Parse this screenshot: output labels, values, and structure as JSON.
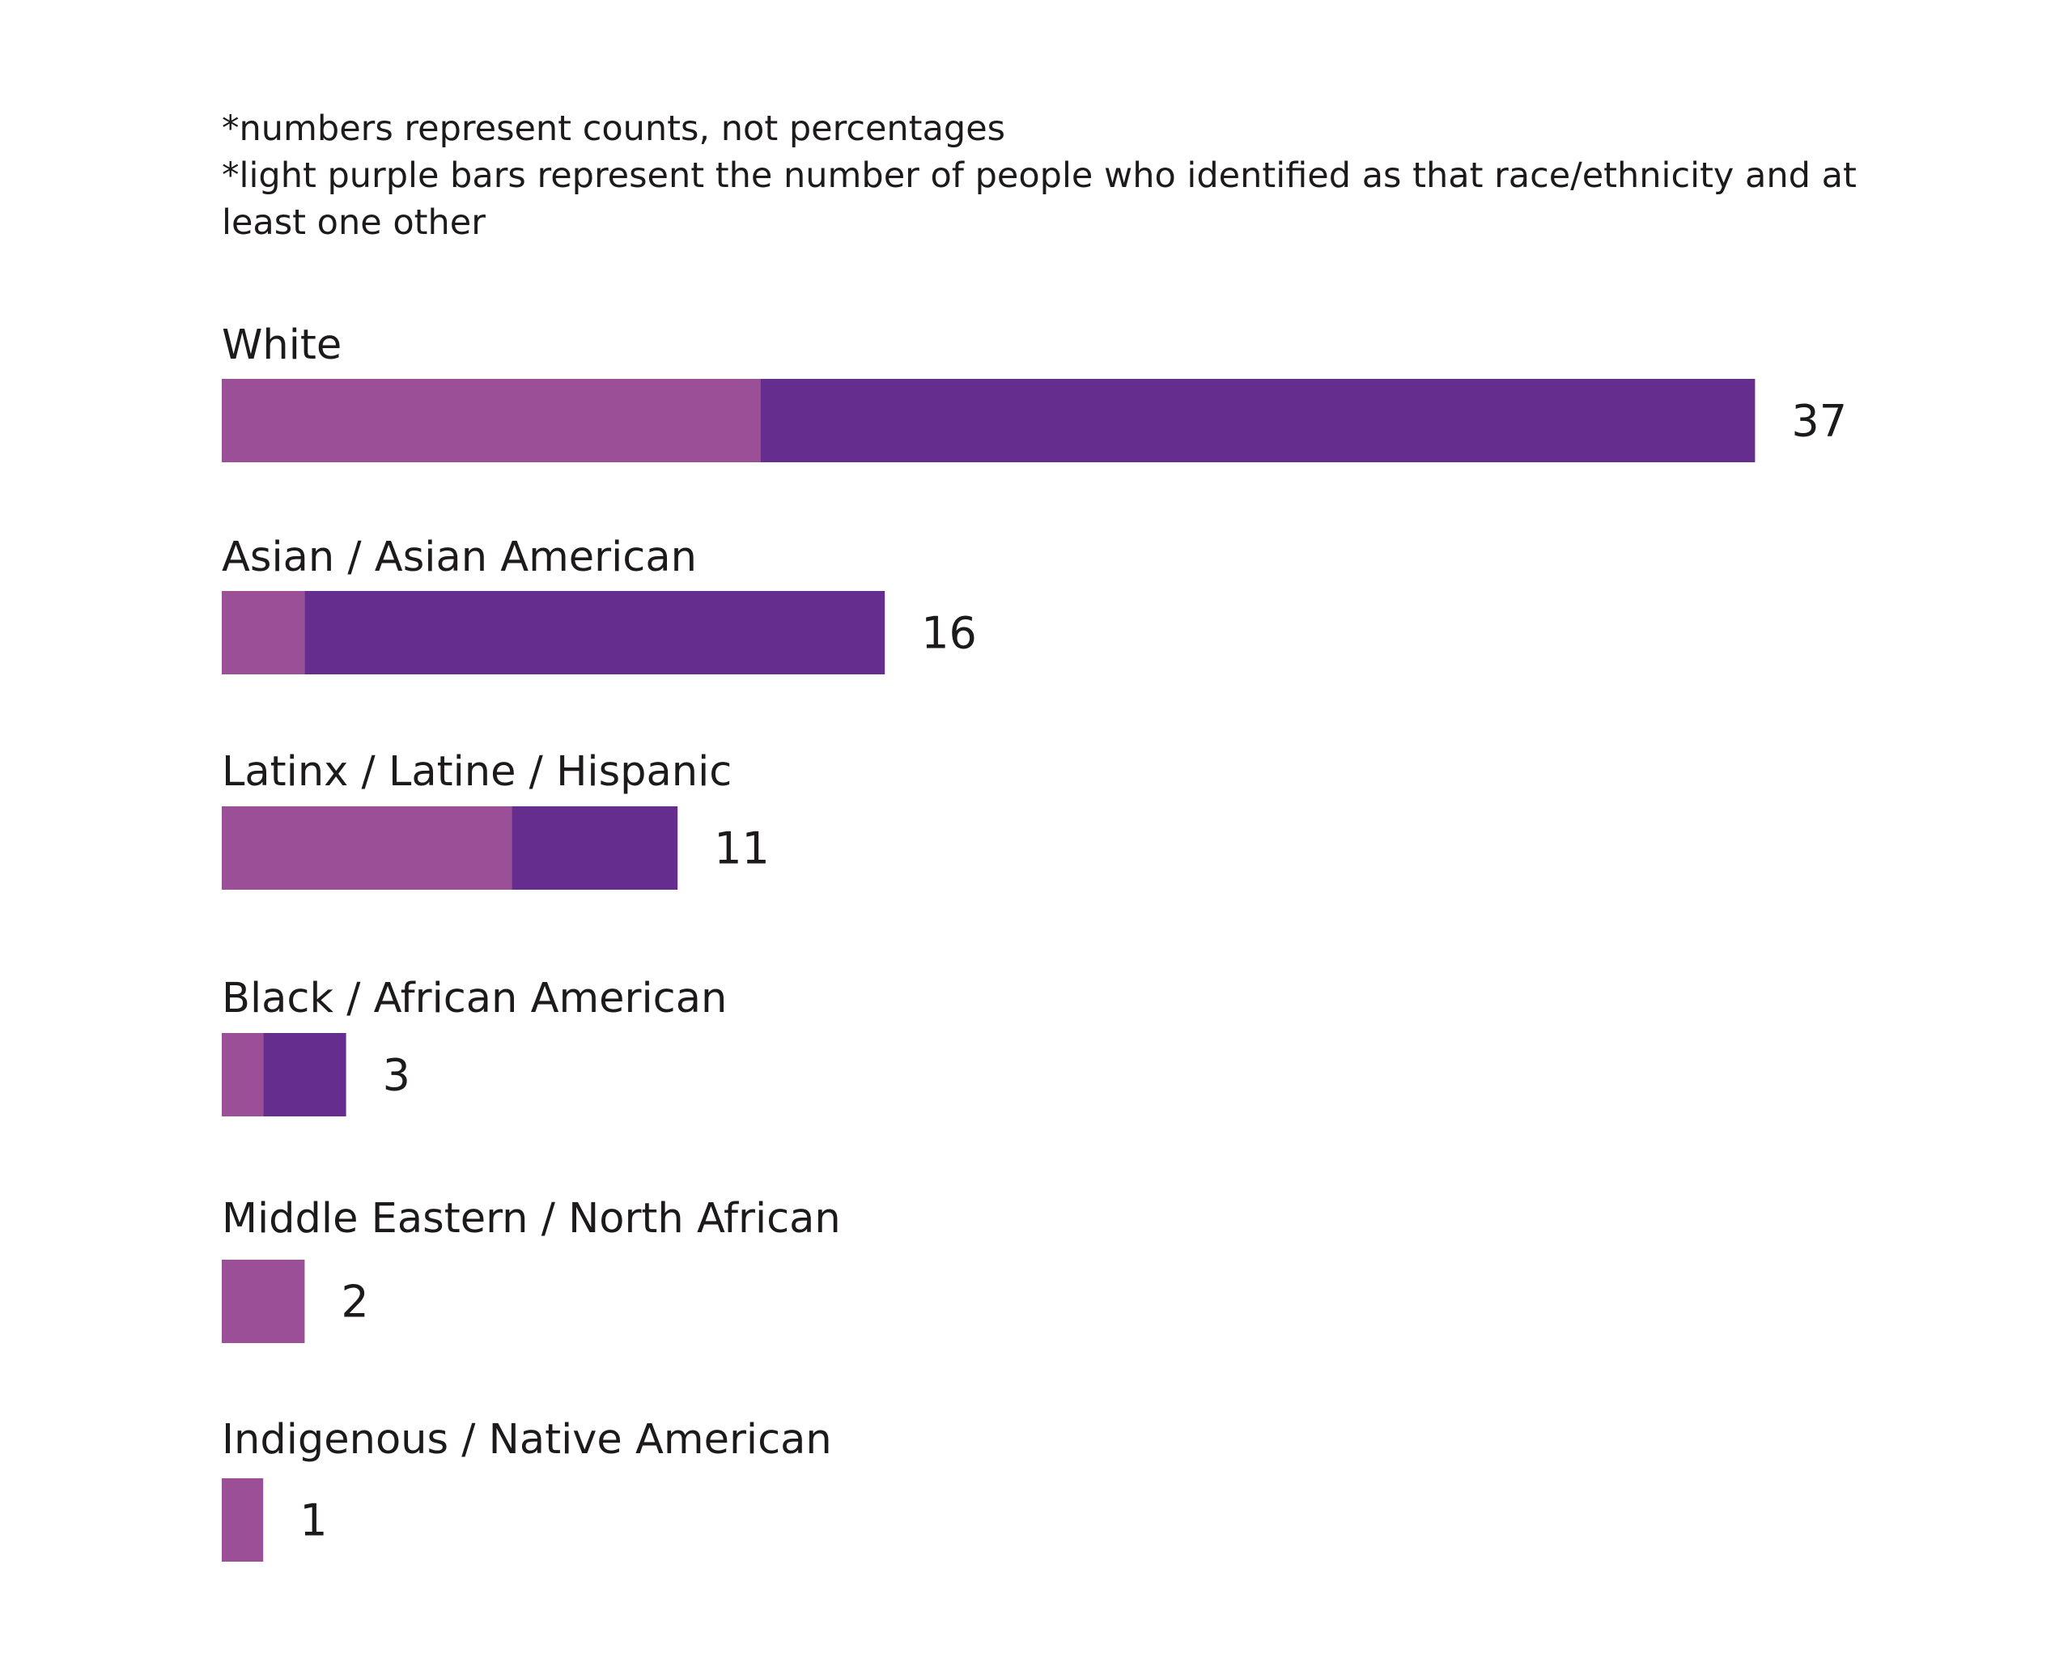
{
  "notes": {
    "line1": "*numbers represent counts, not percentages",
    "line2": "*light purple bars represent the number of people who identified as that race/ethnicity and at",
    "line3": "least one other"
  },
  "colors": {
    "multi": "#9b4f96",
    "single": "#652d8e"
  },
  "chart_data": {
    "type": "bar",
    "orientation": "horizontal",
    "stacked": true,
    "categories": [
      "White",
      "Asian / Asian American",
      "Latinx / Latine / Hispanic",
      "Black / African American",
      "Middle Eastern / North African",
      "Indigenous / Native American"
    ],
    "totals": [
      37,
      16,
      11,
      3,
      2,
      1
    ],
    "series": [
      {
        "key": "multi",
        "values": [
          13,
          2,
          7,
          1,
          2,
          1
        ]
      },
      {
        "key": "single",
        "values": [
          24,
          14,
          4,
          2,
          0,
          0
        ]
      }
    ],
    "grid": false,
    "legend": "none"
  }
}
